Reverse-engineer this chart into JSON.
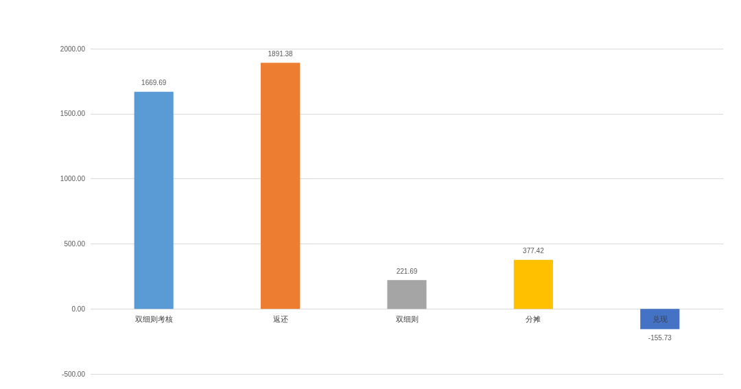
{
  "chart_data": {
    "type": "bar",
    "categories": [
      "双细则考核",
      "返还",
      "双细则",
      "分摊",
      "兑现"
    ],
    "values": [
      1669.69,
      1891.38,
      221.69,
      377.42,
      -155.73
    ],
    "colors": [
      "#5b9bd5",
      "#ed7d31",
      "#a5a5a5",
      "#ffc000",
      "#4472c4"
    ],
    "ylim": [
      -500,
      2000
    ],
    "yticks": [
      {
        "value": -500,
        "label": "-500.00"
      },
      {
        "value": 0,
        "label": "0.00"
      },
      {
        "value": 500,
        "label": "500.00"
      },
      {
        "value": 1000,
        "label": "1000.00"
      },
      {
        "value": 1500,
        "label": "1500.00"
      },
      {
        "value": 2000,
        "label": "2000.00"
      }
    ],
    "grid": "y",
    "data_labels": true
  }
}
